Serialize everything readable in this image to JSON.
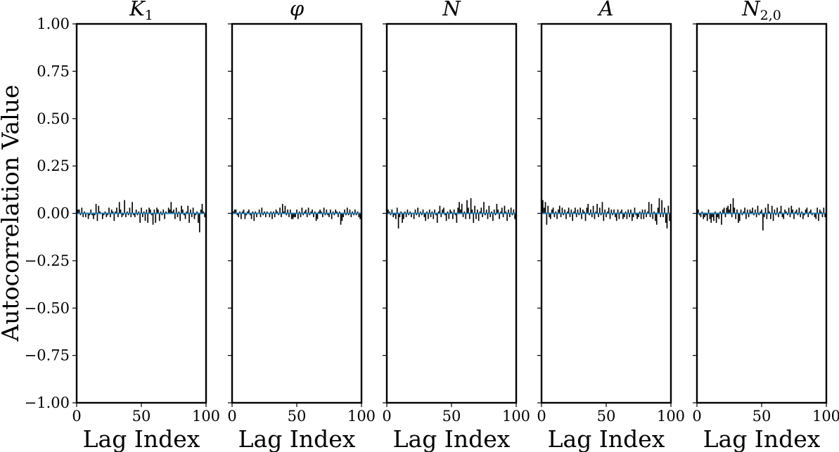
{
  "figure": {
    "ylabel": "Autocorrelation Value"
  },
  "chart_data": [
    {
      "type": "bar",
      "title": "K",
      "title_sub": "1",
      "xlabel": "Lag Index",
      "ylabel": "Autocorrelation Value",
      "xlim": [
        0,
        100
      ],
      "ylim": [
        -1.0,
        1.0
      ],
      "xticks": [
        "0",
        "50",
        "100"
      ],
      "yticks": [
        "1.00",
        "0.75",
        "0.50",
        "0.25",
        "0.00",
        "−0.25",
        "−0.50",
        "−0.75",
        "−1.00"
      ],
      "bar_color": "#000000",
      "zero_line_color": "#1f77b4",
      "x": [
        1,
        2,
        3,
        4,
        5,
        6,
        7,
        8,
        9,
        10,
        11,
        12,
        13,
        14,
        15,
        16,
        17,
        18,
        19,
        20,
        21,
        22,
        23,
        24,
        25,
        26,
        27,
        28,
        29,
        30,
        31,
        32,
        33,
        34,
        35,
        36,
        37,
        38,
        39,
        40,
        41,
        42,
        43,
        44,
        45,
        46,
        47,
        48,
        49,
        50,
        51,
        52,
        53,
        54,
        55,
        56,
        57,
        58,
        59,
        60,
        61,
        62,
        63,
        64,
        65,
        66,
        67,
        68,
        69,
        70,
        71,
        72,
        73,
        74,
        75,
        76,
        77,
        78,
        79,
        80,
        81,
        82,
        83,
        84,
        85,
        86,
        87,
        88,
        89,
        90,
        91,
        92,
        93,
        94,
        95,
        96,
        97,
        98,
        99,
        100
      ],
      "values": [
        0.02,
        0.02,
        -0.01,
        0.03,
        -0.02,
        0.01,
        -0.02,
        0.0,
        -0.03,
        -0.01,
        0.02,
        -0.01,
        -0.03,
        -0.01,
        0.05,
        -0.04,
        0.04,
        0.01,
        0.0,
        -0.03,
        -0.01,
        0.01,
        -0.02,
        -0.01,
        0.03,
        -0.02,
        0.02,
        0.01,
        -0.04,
        0.01,
        0.03,
        -0.02,
        0.06,
        0.02,
        -0.02,
        -0.01,
        0.07,
        -0.02,
        0.01,
        -0.01,
        0.03,
        -0.02,
        0.06,
        -0.01,
        -0.02,
        0.02,
        -0.01,
        0.01,
        -0.05,
        0.03,
        -0.02,
        0.01,
        -0.04,
        0.02,
        -0.05,
        0.03,
        0.02,
        -0.01,
        -0.06,
        0.02,
        -0.05,
        0.03,
        0.02,
        -0.04,
        0.01,
        -0.01,
        0.02,
        -0.03,
        0.01,
        0.0,
        0.03,
        0.02,
        0.06,
        0.01,
        0.02,
        -0.03,
        0.03,
        -0.02,
        0.01,
        -0.04,
        0.04,
        0.02,
        -0.01,
        -0.03,
        0.01,
        0.04,
        -0.05,
        0.02,
        -0.02,
        0.03,
        -0.03,
        -0.01,
        0.01,
        -0.05,
        -0.1,
        0.02,
        0.05,
        0.01,
        -0.02,
        0.01
      ]
    },
    {
      "type": "bar",
      "title": "φ",
      "title_sub": "",
      "xlabel": "Lag Index",
      "ylabel": "",
      "xlim": [
        0,
        100
      ],
      "ylim": [
        -1.0,
        1.0
      ],
      "xticks": [
        "0",
        "50",
        "100"
      ],
      "yticks": [],
      "bar_color": "#000000",
      "zero_line_color": "#1f77b4",
      "x": [
        1,
        2,
        3,
        4,
        5,
        6,
        7,
        8,
        9,
        10,
        11,
        12,
        13,
        14,
        15,
        16,
        17,
        18,
        19,
        20,
        21,
        22,
        23,
        24,
        25,
        26,
        27,
        28,
        29,
        30,
        31,
        32,
        33,
        34,
        35,
        36,
        37,
        38,
        39,
        40,
        41,
        42,
        43,
        44,
        45,
        46,
        47,
        48,
        49,
        50,
        51,
        52,
        53,
        54,
        55,
        56,
        57,
        58,
        59,
        60,
        61,
        62,
        63,
        64,
        65,
        66,
        67,
        68,
        69,
        70,
        71,
        72,
        73,
        74,
        75,
        76,
        77,
        78,
        79,
        80,
        81,
        82,
        83,
        84,
        85,
        86,
        87,
        88,
        89,
        90,
        91,
        92,
        93,
        94,
        95,
        96,
        97,
        98,
        99,
        100
      ],
      "values": [
        0.01,
        0.02,
        0.02,
        -0.01,
        -0.02,
        0.01,
        -0.03,
        0.01,
        0.02,
        -0.03,
        -0.01,
        0.01,
        0.02,
        -0.01,
        -0.03,
        0.01,
        -0.04,
        0.01,
        -0.02,
        0.0,
        0.02,
        -0.02,
        0.03,
        -0.01,
        0.01,
        -0.02,
        0.01,
        0.0,
        -0.02,
        0.01,
        -0.03,
        0.01,
        -0.02,
        0.02,
        0.01,
        -0.01,
        0.03,
        -0.02,
        0.05,
        0.01,
        0.04,
        -0.01,
        0.02,
        -0.02,
        0.02,
        -0.03,
        -0.03,
        -0.02,
        -0.02,
        0.02,
        -0.03,
        0.01,
        -0.02,
        0.03,
        -0.01,
        0.01,
        0.02,
        -0.02,
        0.03,
        -0.01,
        0.01,
        0.02,
        -0.02,
        0.01,
        -0.04,
        -0.03,
        0.01,
        0.02,
        0.01,
        -0.02,
        0.03,
        -0.01,
        0.02,
        -0.01,
        -0.02,
        0.02,
        -0.03,
        0.01,
        -0.01,
        0.02,
        0.01,
        -0.02,
        0.01,
        -0.06,
        -0.04,
        -0.02,
        0.02,
        -0.01,
        0.03,
        -0.01,
        0.02,
        -0.02,
        0.01,
        -0.01,
        0.02,
        -0.01,
        0.01,
        -0.02,
        -0.03,
        -0.02
      ]
    },
    {
      "type": "bar",
      "title": "N",
      "title_sub": "",
      "xlabel": "Lag Index",
      "ylabel": "",
      "xlim": [
        0,
        100
      ],
      "ylim": [
        -1.0,
        1.0
      ],
      "xticks": [
        "0",
        "50",
        "100"
      ],
      "yticks": [],
      "bar_color": "#000000",
      "zero_line_color": "#1f77b4",
      "x": [
        1,
        2,
        3,
        4,
        5,
        6,
        7,
        8,
        9,
        10,
        11,
        12,
        13,
        14,
        15,
        16,
        17,
        18,
        19,
        20,
        21,
        22,
        23,
        24,
        25,
        26,
        27,
        28,
        29,
        30,
        31,
        32,
        33,
        34,
        35,
        36,
        37,
        38,
        39,
        40,
        41,
        42,
        43,
        44,
        45,
        46,
        47,
        48,
        49,
        50,
        51,
        52,
        53,
        54,
        55,
        56,
        57,
        58,
        59,
        60,
        61,
        62,
        63,
        64,
        65,
        66,
        67,
        68,
        69,
        70,
        71,
        72,
        73,
        74,
        75,
        76,
        77,
        78,
        79,
        80,
        81,
        82,
        83,
        84,
        85,
        86,
        87,
        88,
        89,
        90,
        91,
        92,
        93,
        94,
        95,
        96,
        97,
        98,
        99,
        100
      ],
      "values": [
        0.02,
        0.01,
        -0.01,
        0.02,
        -0.02,
        -0.01,
        -0.03,
        0.03,
        -0.08,
        -0.02,
        0.01,
        -0.05,
        -0.03,
        0.01,
        -0.02,
        0.02,
        -0.01,
        0.01,
        -0.02,
        0.0,
        -0.03,
        0.02,
        -0.01,
        0.03,
        -0.02,
        0.01,
        -0.01,
        0.02,
        -0.02,
        -0.04,
        0.01,
        -0.03,
        0.02,
        -0.02,
        0.01,
        -0.03,
        0.02,
        -0.01,
        -0.05,
        0.01,
        0.04,
        -0.02,
        0.02,
        0.03,
        -0.01,
        -0.04,
        0.01,
        -0.03,
        0.02,
        0.01,
        -0.03,
        0.02,
        -0.01,
        -0.05,
        0.03,
        0.06,
        0.02,
        0.05,
        -0.02,
        0.01,
        -0.03,
        0.07,
        0.03,
        -0.03,
        0.08,
        0.02,
        -0.05,
        0.04,
        -0.03,
        0.02,
        -0.04,
        0.01,
        0.03,
        -0.02,
        0.06,
        -0.01,
        0.02,
        -0.03,
        0.04,
        -0.02,
        0.01,
        -0.04,
        0.02,
        -0.01,
        0.05,
        0.02,
        -0.03,
        0.01,
        0.03,
        -0.02,
        0.04,
        0.01,
        -0.04,
        0.02,
        -0.02,
        0.03,
        -0.01,
        0.02,
        -0.03,
        0.03
      ]
    },
    {
      "type": "bar",
      "title": "A",
      "title_sub": "",
      "xlabel": "Lag Index",
      "ylabel": "",
      "xlim": [
        0,
        100
      ],
      "ylim": [
        -1.0,
        1.0
      ],
      "xticks": [
        "0",
        "50",
        "100"
      ],
      "yticks": [],
      "bar_color": "#000000",
      "zero_line_color": "#1f77b4",
      "x": [
        1,
        2,
        3,
        4,
        5,
        6,
        7,
        8,
        9,
        10,
        11,
        12,
        13,
        14,
        15,
        16,
        17,
        18,
        19,
        20,
        21,
        22,
        23,
        24,
        25,
        26,
        27,
        28,
        29,
        30,
        31,
        32,
        33,
        34,
        35,
        36,
        37,
        38,
        39,
        40,
        41,
        42,
        43,
        44,
        45,
        46,
        47,
        48,
        49,
        50,
        51,
        52,
        53,
        54,
        55,
        56,
        57,
        58,
        59,
        60,
        61,
        62,
        63,
        64,
        65,
        66,
        67,
        68,
        69,
        70,
        71,
        72,
        73,
        74,
        75,
        76,
        77,
        78,
        79,
        80,
        81,
        82,
        83,
        84,
        85,
        86,
        87,
        88,
        89,
        90,
        91,
        92,
        93,
        94,
        95,
        96,
        97,
        98,
        99,
        100
      ],
      "values": [
        0.07,
        0.03,
        0.06,
        -0.06,
        0.04,
        -0.02,
        -0.03,
        0.02,
        0.03,
        -0.02,
        0.01,
        -0.03,
        0.02,
        0.04,
        -0.02,
        0.03,
        -0.01,
        0.02,
        -0.03,
        0.01,
        0.03,
        -0.02,
        0.02,
        -0.04,
        0.01,
        0.03,
        -0.02,
        0.02,
        -0.01,
        0.03,
        -0.03,
        0.02,
        0.01,
        -0.04,
        0.03,
        0.05,
        -0.01,
        0.02,
        -0.02,
        0.04,
        -0.03,
        0.01,
        0.05,
        -0.02,
        0.03,
        -0.01,
        0.06,
        -0.04,
        0.02,
        -0.02,
        0.01,
        0.03,
        -0.03,
        0.02,
        -0.01,
        0.02,
        -0.02,
        -0.04,
        0.02,
        -0.03,
        0.01,
        0.02,
        -0.03,
        -0.02,
        0.01,
        -0.03,
        0.02,
        -0.02,
        0.02,
        -0.04,
        -0.02,
        0.03,
        -0.01,
        -0.03,
        -0.02,
        0.01,
        -0.03,
        0.02,
        -0.03,
        0.02,
        -0.02,
        0.01,
        0.06,
        -0.02,
        0.05,
        -0.03,
        0.01,
        -0.04,
        -0.06,
        0.03,
        0.08,
        -0.02,
        0.07,
        -0.02,
        0.03,
        -0.05,
        -0.08,
        0.04,
        -0.04,
        -0.02
      ]
    },
    {
      "type": "bar",
      "title": "N",
      "title_sub": "2,0",
      "xlabel": "Lag Index",
      "ylabel": "",
      "xlim": [
        0,
        100
      ],
      "ylim": [
        -1.0,
        1.0
      ],
      "xticks": [
        "0",
        "50",
        "100"
      ],
      "yticks": [],
      "bar_color": "#000000",
      "zero_line_color": "#1f77b4",
      "x": [
        1,
        2,
        3,
        4,
        5,
        6,
        7,
        8,
        9,
        10,
        11,
        12,
        13,
        14,
        15,
        16,
        17,
        18,
        19,
        20,
        21,
        22,
        23,
        24,
        25,
        26,
        27,
        28,
        29,
        30,
        31,
        32,
        33,
        34,
        35,
        36,
        37,
        38,
        39,
        40,
        41,
        42,
        43,
        44,
        45,
        46,
        47,
        48,
        49,
        50,
        51,
        52,
        53,
        54,
        55,
        56,
        57,
        58,
        59,
        60,
        61,
        62,
        63,
        64,
        65,
        66,
        67,
        68,
        69,
        70,
        71,
        72,
        73,
        74,
        75,
        76,
        77,
        78,
        79,
        80,
        81,
        82,
        83,
        84,
        85,
        86,
        87,
        88,
        89,
        90,
        91,
        92,
        93,
        94,
        95,
        96,
        97,
        98,
        99,
        100
      ],
      "values": [
        0.02,
        -0.01,
        -0.02,
        0.01,
        -0.03,
        -0.02,
        -0.01,
        -0.04,
        0.02,
        -0.03,
        -0.05,
        -0.02,
        -0.04,
        0.01,
        -0.05,
        -0.02,
        -0.03,
        0.01,
        -0.06,
        0.02,
        0.03,
        -0.02,
        0.03,
        0.04,
        0.02,
        0.05,
        -0.02,
        0.08,
        0.03,
        -0.03,
        0.02,
        -0.05,
        -0.04,
        0.02,
        -0.01,
        0.01,
        0.03,
        -0.03,
        0.02,
        -0.02,
        0.02,
        0.01,
        0.03,
        -0.01,
        0.02,
        -0.02,
        0.04,
        -0.01,
        0.01,
        0.02,
        -0.09,
        -0.02,
        0.03,
        -0.03,
        0.05,
        0.01,
        -0.03,
        0.04,
        -0.04,
        0.02,
        -0.01,
        0.03,
        -0.02,
        0.01,
        0.04,
        -0.02,
        -0.03,
        0.02,
        0.01,
        -0.01,
        0.03,
        -0.02,
        0.04,
        0.02,
        -0.03,
        0.01,
        0.02,
        -0.01,
        0.03,
        -0.02,
        0.01,
        -0.03,
        -0.01,
        0.02,
        0.03,
        -0.02,
        0.01,
        0.02,
        -0.01,
        0.0,
        -0.02,
        -0.03,
        0.03,
        -0.04,
        0.02,
        0.01,
        -0.02,
        0.03,
        -0.02,
        -0.01
      ]
    }
  ]
}
